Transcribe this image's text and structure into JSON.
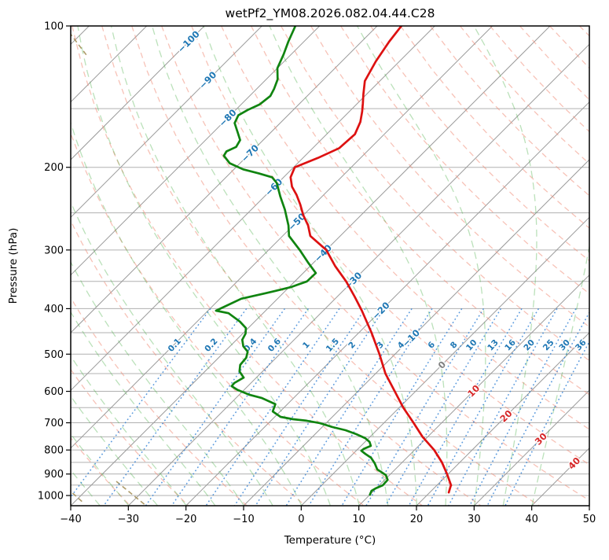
{
  "title": "wetPf2_YM08.2026.082.04.44.C28",
  "axes": {
    "x": {
      "label": "Temperature (°C)",
      "min": -40,
      "max": 50,
      "ticks": [
        -40,
        -30,
        -20,
        -10,
        0,
        10,
        20,
        30,
        40,
        50
      ]
    },
    "y": {
      "label": "Pressure (hPa)",
      "min": 100,
      "max": 1050,
      "scale": "log",
      "ticks": [
        100,
        200,
        300,
        400,
        500,
        600,
        700,
        800,
        900,
        1000
      ]
    }
  },
  "chart_data": {
    "type": "line",
    "subtype": "skew_t_log_p_sounding",
    "title": "wetPf2_YM08.2026.082.04.44.C28",
    "xlabel": "Temperature (°C)",
    "ylabel": "Pressure (hPa)",
    "xlim": [
      -40,
      50
    ],
    "ylim_hPa": [
      1050,
      100
    ],
    "grid": "isobars every 50 hPa, skewed isotherms every 10 C",
    "series": [
      {
        "name": "temperature",
        "color": "#dd1111",
        "points_p_T": [
          [
            100,
            -65.8
          ],
          [
            108,
            -65.2
          ],
          [
            119,
            -64.1
          ],
          [
            131,
            -62.6
          ],
          [
            140,
            -60.5
          ],
          [
            146,
            -59.1
          ],
          [
            152,
            -57.8
          ],
          [
            160,
            -56.3
          ],
          [
            170,
            -55.1
          ],
          [
            182,
            -55.4
          ],
          [
            191,
            -57.4
          ],
          [
            200,
            -59.8
          ],
          [
            210,
            -58.8
          ],
          [
            220,
            -56.9
          ],
          [
            229,
            -54.7
          ],
          [
            240,
            -52.4
          ],
          [
            253,
            -50.0
          ],
          [
            266,
            -47.4
          ],
          [
            280,
            -45.2
          ],
          [
            300,
            -40.0
          ],
          [
            325,
            -35.6
          ],
          [
            350,
            -31.1
          ],
          [
            377,
            -27.0
          ],
          [
            404,
            -23.3
          ],
          [
            450,
            -17.8
          ],
          [
            500,
            -12.7
          ],
          [
            550,
            -8.3
          ],
          [
            600,
            -3.6
          ],
          [
            650,
            0.7
          ],
          [
            700,
            5.1
          ],
          [
            750,
            9.1
          ],
          [
            800,
            13.4
          ],
          [
            850,
            16.9
          ],
          [
            900,
            19.8
          ],
          [
            950,
            22.4
          ],
          [
            985,
            23.3
          ]
        ]
      },
      {
        "name": "dewpoint",
        "color": "#108410",
        "points_p_T": [
          [
            100,
            -84.2
          ],
          [
            108,
            -82.7
          ],
          [
            115,
            -81.3
          ],
          [
            123,
            -80.0
          ],
          [
            130,
            -78.0
          ],
          [
            136,
            -77.0
          ],
          [
            141,
            -76.4
          ],
          [
            147,
            -76.8
          ],
          [
            151,
            -77.9
          ],
          [
            155,
            -78.6
          ],
          [
            161,
            -77.9
          ],
          [
            168,
            -75.9
          ],
          [
            175,
            -74.0
          ],
          [
            181,
            -73.5
          ],
          [
            185,
            -74.4
          ],
          [
            189,
            -74.1
          ],
          [
            196,
            -71.8
          ],
          [
            202,
            -68.4
          ],
          [
            206,
            -65.0
          ],
          [
            210,
            -62.0
          ],
          [
            216,
            -60.2
          ],
          [
            231,
            -57.2
          ],
          [
            246,
            -54.2
          ],
          [
            266,
            -50.8
          ],
          [
            280,
            -48.9
          ],
          [
            300,
            -44.6
          ],
          [
            320,
            -40.8
          ],
          [
            336,
            -37.8
          ],
          [
            350,
            -37.9
          ],
          [
            360,
            -39.7
          ],
          [
            367,
            -41.8
          ],
          [
            371,
            -43.1
          ],
          [
            381,
            -46.3
          ],
          [
            404,
            -48.6
          ],
          [
            409,
            -46.0
          ],
          [
            426,
            -42.6
          ],
          [
            440,
            -40.4
          ],
          [
            452,
            -39.5
          ],
          [
            466,
            -39.0
          ],
          [
            481,
            -37.7
          ],
          [
            494,
            -36.0
          ],
          [
            509,
            -35.2
          ],
          [
            527,
            -35.0
          ],
          [
            544,
            -34.0
          ],
          [
            561,
            -32.2
          ],
          [
            576,
            -32.9
          ],
          [
            585,
            -32.8
          ],
          [
            596,
            -31.1
          ],
          [
            610,
            -28.3
          ],
          [
            620,
            -25.5
          ],
          [
            639,
            -22.1
          ],
          [
            662,
            -21.3
          ],
          [
            680,
            -19.0
          ],
          [
            688,
            -16.4
          ],
          [
            693,
            -13.8
          ],
          [
            701,
            -11.1
          ],
          [
            715,
            -8.2
          ],
          [
            726,
            -5.4
          ],
          [
            740,
            -2.9
          ],
          [
            755,
            -0.6
          ],
          [
            769,
            0.8
          ],
          [
            784,
            1.7
          ],
          [
            796,
            1.0
          ],
          [
            803,
            0.9
          ],
          [
            815,
            2.1
          ],
          [
            831,
            3.8
          ],
          [
            854,
            5.4
          ],
          [
            880,
            6.9
          ],
          [
            894,
            8.3
          ],
          [
            905,
            9.4
          ],
          [
            926,
            10.5
          ],
          [
            951,
            10.6
          ],
          [
            966,
            9.9
          ],
          [
            977,
            9.6
          ],
          [
            996,
            10.0
          ]
        ]
      }
    ],
    "isotherms": {
      "start_C": -120,
      "end_C": 50,
      "step_C": 10,
      "labeled_values": [
        -100,
        -90,
        -80,
        -70,
        -60,
        -50,
        -40,
        -30,
        -20,
        -10,
        0,
        10,
        20,
        30,
        40
      ],
      "label_color_negative": "#1f77b4",
      "label_color_zero": "#808080",
      "label_color_positive": "#d62728",
      "line_color": "#9a9a9a"
    },
    "mixing_ratio_lines": {
      "values_g_kg": [
        0.1,
        0.2,
        0.4,
        0.6,
        1,
        1.5,
        2,
        3,
        4,
        6,
        8,
        10,
        13,
        16,
        20,
        25,
        30,
        36
      ],
      "label_color": "#1f77b4",
      "line_color": "#2f7fd4",
      "pressure_range_hPa": [
        400,
        1050
      ]
    },
    "dry_adiabats": {
      "theta_K_start": 230,
      "theta_K_end": 460,
      "step_K": 10,
      "color": "#f0907c"
    },
    "moist_adiabats": {
      "surface_T_start_C": -60,
      "surface_T_end_C": 40,
      "step_C": 5,
      "color": "#4daf4a"
    },
    "isobar_grid": {
      "start_hPa": 150,
      "end_hPa": 1000,
      "step_hPa": 50,
      "color": "#b0b0b0"
    }
  }
}
